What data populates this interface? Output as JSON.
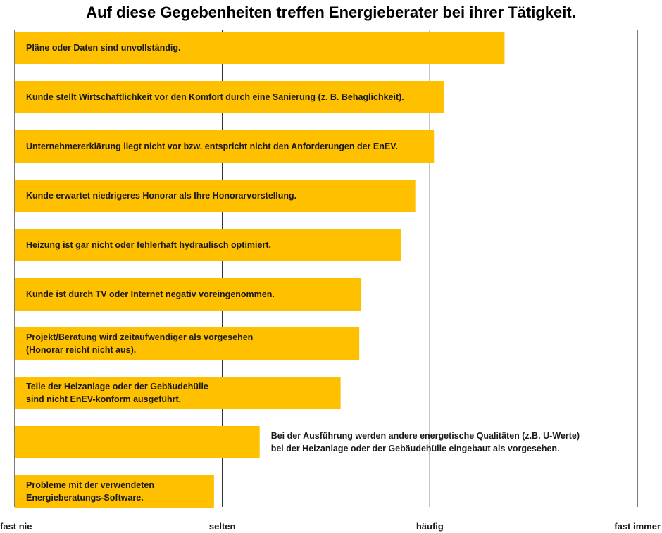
{
  "chart_data": {
    "type": "bar",
    "orientation": "horizontal",
    "title": "Auf diese Gegebenheiten treffen Energieberater bei ihrer Tätigkeit.",
    "bar_color": "#FFC000",
    "x_ticks": [
      "fast nie",
      "selten",
      "häufig",
      "fast immer"
    ],
    "xlim": [
      1,
      4
    ],
    "grid": "vertical",
    "categories": [
      [
        "Pläne oder Daten sind unvollständig."
      ],
      [
        "Kunde stellt Wirtschaftlichkeit vor den Komfort durch eine Sanierung (z. B. Behaglichkeit)."
      ],
      [
        "Unternehmererklärung liegt nicht vor bzw. entspricht nicht den Anforderungen der EnEV."
      ],
      [
        "Kunde erwartet niedrigeres Honorar als Ihre Honorarvorstellung."
      ],
      [
        "Heizung ist gar nicht oder fehlerhaft hydraulisch optimiert."
      ],
      [
        "Kunde ist durch TV oder Internet negativ voreingenommen."
      ],
      [
        "Projekt/Beratung wird zeitaufwendiger als vorgesehen",
        "(Honorar reicht nicht aus)."
      ],
      [
        "Teile der Heizanlage oder der Gebäudehülle",
        "sind nicht EnEV-konform ausgeführt."
      ],
      [
        "Bei der Ausführung werden andere energetische  Qualitäten (z.B. U-Werte)",
        "bei der Heizanlage oder der Gebäudehülle eingebaut als vorgesehen."
      ],
      [
        "Probleme mit der verwendeten",
        "Energieberatungs-Software."
      ]
    ],
    "values": [
      3.36,
      3.07,
      3.02,
      2.93,
      2.86,
      2.67,
      2.66,
      2.57,
      2.18,
      1.96
    ]
  }
}
